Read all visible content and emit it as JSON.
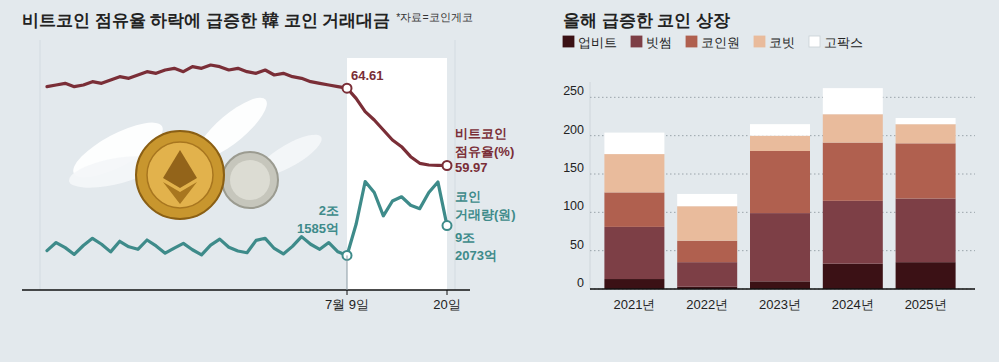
{
  "chart_data": [
    {
      "type": "line",
      "title": "비트코인 점유율 하락에 급증한 韓 코인 거래대금",
      "source": "*자료=코인게코",
      "categories": [
        null,
        null,
        null,
        null,
        null,
        null,
        null,
        null,
        null,
        null,
        null,
        null,
        null,
        null,
        null,
        null,
        null,
        null,
        null,
        null,
        null,
        null,
        null,
        null,
        null,
        null,
        null,
        null,
        null,
        null,
        null,
        null,
        null,
        "7월 9일",
        null,
        null,
        null,
        null,
        null,
        null,
        null,
        null,
        null,
        null,
        "20일"
      ],
      "series": [
        {
          "name": "비트코인 점유율(%)",
          "color": "#7a2e37",
          "values": [
            64.7,
            64.8,
            64.9,
            64.7,
            64.8,
            65.0,
            64.9,
            65.1,
            65.3,
            65.2,
            65.4,
            65.6,
            65.5,
            65.7,
            65.8,
            65.6,
            65.9,
            65.8,
            66.0,
            65.9,
            65.7,
            65.8,
            65.6,
            65.5,
            65.7,
            65.4,
            65.5,
            65.3,
            65.2,
            65.0,
            64.9,
            64.8,
            64.7,
            64.61,
            64.0,
            63.2,
            62.7,
            62.1,
            61.5,
            61.1,
            60.5,
            60.1,
            60.0,
            59.98,
            59.97
          ],
          "value_labels": [
            null,
            null,
            null,
            null,
            null,
            null,
            null,
            null,
            null,
            null,
            null,
            null,
            null,
            null,
            null,
            null,
            null,
            null,
            null,
            null,
            null,
            null,
            null,
            null,
            null,
            null,
            null,
            null,
            null,
            null,
            null,
            null,
            null,
            "64.61",
            null,
            null,
            null,
            null,
            null,
            null,
            null,
            null,
            null,
            null,
            "59.97"
          ]
        },
        {
          "name": "코인 거래량(원)",
          "color": "#3e8b8a",
          "axis": "y2",
          "values": [
            33000,
            52000,
            40000,
            24000,
            45000,
            62000,
            48000,
            30000,
            55000,
            42000,
            36000,
            58000,
            44000,
            27000,
            39000,
            50000,
            35000,
            23000,
            46000,
            60000,
            41000,
            32000,
            28000,
            57000,
            62000,
            38000,
            25000,
            43000,
            66000,
            48000,
            36000,
            52000,
            30000,
            21585,
            95000,
            196000,
            170000,
            115000,
            150000,
            160000,
            140000,
            132000,
            170000,
            195000,
            92073
          ],
          "value_labels": [
            null,
            null,
            null,
            null,
            null,
            null,
            null,
            null,
            null,
            null,
            null,
            null,
            null,
            null,
            null,
            null,
            null,
            null,
            null,
            null,
            null,
            null,
            null,
            null,
            null,
            null,
            null,
            null,
            null,
            null,
            null,
            null,
            null,
            "2조 1585억",
            null,
            null,
            null,
            null,
            null,
            null,
            null,
            null,
            null,
            null,
            "9조 2073억"
          ]
        }
      ],
      "ylim": [
        52.5,
        67.5
      ],
      "y2lim": [
        -60000,
        530000
      ],
      "tick_labels": "x",
      "grid": false
    },
    {
      "type": "bar",
      "title": "올해 급증한 코인 상장",
      "stacked": true,
      "categories": [
        "2021년",
        "2022년",
        "2023년",
        "2024년",
        "2025년"
      ],
      "series": [
        {
          "name": "업비트",
          "color": "#3b1115",
          "values": [
            13,
            3,
            10,
            33,
            35
          ]
        },
        {
          "name": "빗썸",
          "color": "#7d3f46",
          "values": [
            68,
            32,
            89,
            82,
            83
          ]
        },
        {
          "name": "코인원",
          "color": "#b0604f",
          "values": [
            45,
            28,
            81,
            76,
            72
          ]
        },
        {
          "name": "코빗",
          "color": "#e9bb9c",
          "values": [
            50,
            45,
            20,
            37,
            25
          ]
        },
        {
          "name": "고팍스",
          "color": "#ffffff",
          "values": [
            28,
            16,
            15,
            34,
            8
          ]
        }
      ],
      "ylim": [
        0,
        270
      ],
      "yticks": [
        0,
        50,
        100,
        150,
        200,
        250
      ],
      "grid": true,
      "legend": "top"
    }
  ]
}
